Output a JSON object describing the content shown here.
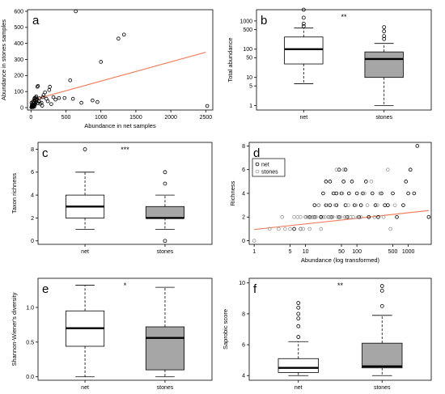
{
  "chart_data": [
    {
      "panel": "a",
      "type": "scatter",
      "xlabel": "Abundance in net samples",
      "ylabel": "Abundance in stones samples",
      "xlim": [
        0,
        2600
      ],
      "ylim": [
        0,
        610
      ],
      "xticks": [
        "0",
        "500",
        "1000",
        "1500",
        "2000",
        "2500"
      ],
      "yticks": [
        "0",
        "100",
        "200",
        "300",
        "400",
        "500",
        "600"
      ],
      "fit_color": "#f08060",
      "fit_line": [
        [
          0,
          45
        ],
        [
          2500,
          345
        ]
      ],
      "points": [
        [
          5,
          2
        ],
        [
          10,
          5
        ],
        [
          15,
          8
        ],
        [
          20,
          4
        ],
        [
          25,
          12
        ],
        [
          30,
          3
        ],
        [
          35,
          15
        ],
        [
          40,
          20
        ],
        [
          45,
          6
        ],
        [
          50,
          10
        ],
        [
          55,
          18
        ],
        [
          60,
          25
        ],
        [
          8,
          30
        ],
        [
          12,
          14
        ],
        [
          18,
          22
        ],
        [
          22,
          9
        ],
        [
          28,
          35
        ],
        [
          32,
          16
        ],
        [
          38,
          28
        ],
        [
          42,
          40
        ],
        [
          48,
          55
        ],
        [
          52,
          60
        ],
        [
          58,
          48
        ],
        [
          65,
          62
        ],
        [
          70,
          32
        ],
        [
          75,
          70
        ],
        [
          80,
          45
        ],
        [
          85,
          52
        ],
        [
          90,
          130
        ],
        [
          95,
          28
        ],
        [
          100,
          135
        ],
        [
          110,
          42
        ],
        [
          120,
          58
        ],
        [
          130,
          24
        ],
        [
          150,
          30
        ],
        [
          160,
          12
        ],
        [
          170,
          65
        ],
        [
          180,
          78
        ],
        [
          200,
          95
        ],
        [
          220,
          55
        ],
        [
          240,
          40
        ],
        [
          260,
          110
        ],
        [
          270,
          130
        ],
        [
          290,
          22
        ],
        [
          320,
          65
        ],
        [
          350,
          50
        ],
        [
          400,
          60
        ],
        [
          480,
          60
        ],
        [
          560,
          170
        ],
        [
          600,
          55
        ],
        [
          640,
          600
        ],
        [
          720,
          30
        ],
        [
          880,
          45
        ],
        [
          950,
          35
        ],
        [
          1000,
          285
        ],
        [
          1250,
          430
        ],
        [
          1330,
          455
        ],
        [
          2520,
          10
        ]
      ]
    },
    {
      "panel": "b",
      "type": "boxplot",
      "ylabel": "Total abundance",
      "yscale": "log",
      "ylim": [
        0.7,
        2500
      ],
      "yticks": [
        "1",
        "5",
        "10",
        "50",
        "100",
        "500",
        "1000"
      ],
      "ytick_values": [
        1,
        5,
        10,
        50,
        100,
        500,
        1000
      ],
      "significance": "**",
      "categories": [
        "net",
        "stones"
      ],
      "boxes": [
        {
          "name": "net",
          "fill": "#ffffff",
          "min": 6,
          "q1": 30,
          "median": 100,
          "q3": 270,
          "max": 560,
          "outliers": [
            650,
            800,
            1300,
            2500
          ]
        },
        {
          "name": "stones",
          "fill": "#a6a6a6",
          "min": 1,
          "q1": 10,
          "median": 45,
          "q3": 80,
          "max": 160,
          "outliers": [
            230,
            290,
            430,
            600
          ]
        }
      ]
    },
    {
      "panel": "c",
      "type": "boxplot",
      "ylabel": "Taxon richness",
      "ylim": [
        -0.3,
        8.6
      ],
      "yticks": [
        "0",
        "2",
        "4",
        "6",
        "8"
      ],
      "ytick_values": [
        0,
        2,
        4,
        6,
        8
      ],
      "significance": "***",
      "categories": [
        "net",
        "stones"
      ],
      "boxes": [
        {
          "name": "net",
          "fill": "#ffffff",
          "min": 1,
          "q1": 2,
          "median": 3,
          "q3": 4,
          "max": 6,
          "outliers": [
            8
          ]
        },
        {
          "name": "stones",
          "fill": "#a6a6a6",
          "min": 1,
          "q1": 2,
          "median": 2,
          "q3": 3,
          "max": 4,
          "outliers": [
            0,
            5,
            6
          ]
        }
      ]
    },
    {
      "panel": "d",
      "type": "scatter",
      "xlabel": "Abundance (log transformed)",
      "ylabel": "Richness",
      "xscale": "log",
      "xlim": [
        0.8,
        2800
      ],
      "ylim": [
        -0.3,
        8.3
      ],
      "xticks": [
        "1",
        "5",
        "10",
        "50",
        "100",
        "500",
        "1000"
      ],
      "xtick_values": [
        1,
        5,
        10,
        50,
        100,
        500,
        1000
      ],
      "yticks": [
        "0",
        "2",
        "4",
        "6",
        "8"
      ],
      "ytick_values": [
        0,
        2,
        4,
        6,
        8
      ],
      "fit_color": "#f08060",
      "fit_line": [
        [
          1,
          0.95
        ],
        [
          2500,
          2.55
        ]
      ],
      "legend": [
        "net",
        "stones"
      ],
      "legend_position": "top-left",
      "series": [
        {
          "name": "net",
          "color": "#000000",
          "points": [
            [
              6,
              1
            ],
            [
              8,
              1
            ],
            [
              10,
              2
            ],
            [
              12,
              2
            ],
            [
              15,
              2
            ],
            [
              18,
              3
            ],
            [
              20,
              2
            ],
            [
              22,
              4
            ],
            [
              25,
              3
            ],
            [
              28,
              2
            ],
            [
              30,
              5
            ],
            [
              32,
              2
            ],
            [
              35,
              4
            ],
            [
              40,
              3
            ],
            [
              45,
              2
            ],
            [
              50,
              4
            ],
            [
              55,
              5
            ],
            [
              60,
              3
            ],
            [
              65,
              2
            ],
            [
              70,
              4
            ],
            [
              80,
              5
            ],
            [
              90,
              3
            ],
            [
              100,
              4
            ],
            [
              110,
              2
            ],
            [
              120,
              3
            ],
            [
              130,
              4
            ],
            [
              150,
              5
            ],
            [
              170,
              2
            ],
            [
              200,
              4
            ],
            [
              230,
              3
            ],
            [
              260,
              2
            ],
            [
              300,
              4
            ],
            [
              350,
              3
            ],
            [
              400,
              3
            ],
            [
              500,
              4
            ],
            [
              600,
              2
            ],
            [
              800,
              3
            ],
            [
              900,
              5
            ],
            [
              1000,
              4
            ],
            [
              1100,
              6
            ],
            [
              1300,
              4
            ],
            [
              1500,
              8
            ],
            [
              2500,
              2
            ],
            [
              20,
              2
            ],
            [
              30,
              3
            ],
            [
              40,
              4
            ],
            [
              60,
              6
            ],
            [
              45,
              6
            ],
            [
              25,
              5
            ],
            [
              15,
              3
            ]
          ]
        },
        {
          "name": "stones",
          "color": "#999999",
          "points": [
            [
              1,
              0
            ],
            [
              2,
              1
            ],
            [
              3,
              1
            ],
            [
              3.5,
              2
            ],
            [
              4,
              1
            ],
            [
              5,
              1
            ],
            [
              6,
              2
            ],
            [
              7,
              2
            ],
            [
              8,
              2
            ],
            [
              9,
              1
            ],
            [
              10,
              2
            ],
            [
              11,
              2
            ],
            [
              12,
              1
            ],
            [
              14,
              2
            ],
            [
              16,
              2
            ],
            [
              18,
              3
            ],
            [
              20,
              1
            ],
            [
              22,
              2
            ],
            [
              24,
              2
            ],
            [
              26,
              3
            ],
            [
              28,
              2
            ],
            [
              30,
              2
            ],
            [
              34,
              2
            ],
            [
              38,
              3
            ],
            [
              42,
              2
            ],
            [
              48,
              2
            ],
            [
              52,
              4
            ],
            [
              58,
              2
            ],
            [
              62,
              2
            ],
            [
              68,
              3
            ],
            [
              75,
              2
            ],
            [
              85,
              2
            ],
            [
              95,
              3
            ],
            [
              105,
              2
            ],
            [
              120,
              2
            ],
            [
              140,
              4
            ],
            [
              160,
              3
            ],
            [
              190,
              5
            ],
            [
              220,
              2
            ],
            [
              250,
              3
            ],
            [
              280,
              4
            ],
            [
              330,
              2
            ],
            [
              400,
              6
            ],
            [
              450,
              1
            ],
            [
              550,
              3
            ],
            [
              40,
              6
            ],
            [
              8,
              1
            ],
            [
              13,
              2
            ],
            [
              55,
              6
            ]
          ]
        }
      ]
    },
    {
      "panel": "e",
      "type": "boxplot",
      "ylabel": "Shannon-Wiener's diversity",
      "ylim": [
        -0.05,
        1.42
      ],
      "yticks": [
        "0.0",
        "0.5",
        "1.0"
      ],
      "ytick_values": [
        0,
        0.5,
        1.0
      ],
      "significance": "*",
      "categories": [
        "net",
        "stones"
      ],
      "boxes": [
        {
          "name": "net",
          "fill": "#ffffff",
          "min": 0,
          "q1": 0.44,
          "median": 0.7,
          "q3": 0.95,
          "max": 1.32,
          "outliers": []
        },
        {
          "name": "stones",
          "fill": "#a6a6a6",
          "min": 0,
          "q1": 0.1,
          "median": 0.56,
          "q3": 0.72,
          "max": 1.29,
          "outliers": []
        }
      ]
    },
    {
      "panel": "f",
      "type": "boxplot",
      "ylabel": "Saprobic score",
      "ylim": [
        3.7,
        10.3
      ],
      "yticks": [
        "4",
        "6",
        "8",
        "10"
      ],
      "ytick_values": [
        4,
        6,
        8,
        10
      ],
      "significance": "**",
      "categories": [
        "net",
        "stones"
      ],
      "boxes": [
        {
          "name": "net",
          "fill": "#ffffff",
          "min": 4,
          "q1": 4.2,
          "median": 4.5,
          "q3": 5.1,
          "max": 6.2,
          "outliers": [
            6.5,
            7.2,
            7.7,
            8.0,
            8.4,
            8.7
          ]
        },
        {
          "name": "stones",
          "fill": "#a6a6a6",
          "min": 4,
          "q1": 4.5,
          "median": 4.6,
          "q3": 6.1,
          "max": 7.9,
          "outliers": [
            8.5,
            9.5,
            9.8
          ]
        }
      ]
    }
  ]
}
